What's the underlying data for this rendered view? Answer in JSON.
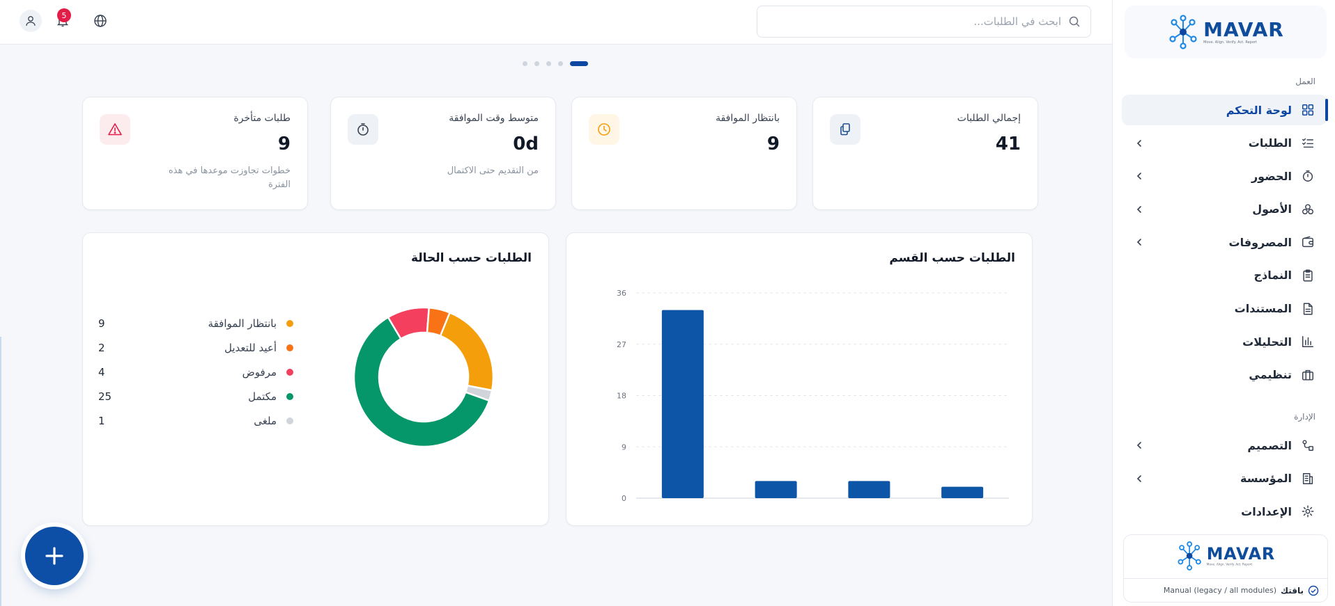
{
  "brand": {
    "name": "MAVAR",
    "tagline": "Move. Align. Verify. Act. Report"
  },
  "search": {
    "placeholder": "ابحث في الطلبات..."
  },
  "topbar": {
    "notification_count": "5"
  },
  "pager": {
    "active_index": 0,
    "count": 5
  },
  "sidebar": {
    "work_label": "العمل",
    "admin_label": "الإدارة",
    "work_items": [
      {
        "label": "لوحة التحكم",
        "icon": "grid-icon",
        "active": true,
        "has_chevron": false
      },
      {
        "label": "الطلبات",
        "icon": "checklist-icon",
        "active": false,
        "has_chevron": true
      },
      {
        "label": "الحضور",
        "icon": "stopwatch-icon",
        "active": false,
        "has_chevron": true
      },
      {
        "label": "الأصول",
        "icon": "boxes-icon",
        "active": false,
        "has_chevron": true
      },
      {
        "label": "المصروفات",
        "icon": "wallet-icon",
        "active": false,
        "has_chevron": true
      },
      {
        "label": "النماذج",
        "icon": "clipboard-icon",
        "active": false,
        "has_chevron": false
      },
      {
        "label": "المستندات",
        "icon": "document-icon",
        "active": false,
        "has_chevron": false
      },
      {
        "label": "التحليلات",
        "icon": "bar-chart-icon",
        "active": false,
        "has_chevron": false
      },
      {
        "label": "تنظيمي",
        "icon": "briefcase-icon",
        "active": false,
        "has_chevron": false
      }
    ],
    "admin_items": [
      {
        "label": "التصميم",
        "icon": "workflow-icon",
        "active": false,
        "has_chevron": true
      },
      {
        "label": "المؤسسة",
        "icon": "building-icon",
        "active": false,
        "has_chevron": true
      },
      {
        "label": "الإعدادات",
        "icon": "gear-icon",
        "active": false,
        "has_chevron": false
      }
    ],
    "plan": {
      "label": "باقتك",
      "value": "Manual (legacy / all modules)"
    }
  },
  "stats": [
    {
      "title": "إجمالي الطلبات",
      "value": "41",
      "sub": "",
      "icon": "copy-icon",
      "icon_bg": "#eef2f7",
      "icon_color": "#1e4f91"
    },
    {
      "title": "بانتظار الموافقة",
      "value": "9",
      "sub": "",
      "icon": "clock-icon",
      "icon_bg": "#fff6e5",
      "icon_color": "#f59e0b"
    },
    {
      "title": "متوسط وقت الموافقة",
      "value": "0d",
      "sub": "من التقديم حتى الاكتمال",
      "icon": "stopwatch-icon",
      "icon_bg": "#eef1f5",
      "icon_color": "#374151"
    },
    {
      "title": "طلبات متأخرة",
      "value": "9",
      "sub": "خطوات تجاوزت موعدها في هذه الفترة",
      "icon": "warning-icon",
      "icon_bg": "#fdecee",
      "icon_color": "#e11d48"
    }
  ],
  "charts": {
    "department_title": "الطلبات حسب القسم",
    "status_title": "الطلبات حسب الحالة"
  },
  "chart_data": [
    {
      "type": "bar",
      "title": "الطلبات حسب القسم",
      "categories": [
        "",
        "",
        "",
        ""
      ],
      "values": [
        33,
        3,
        3,
        2
      ],
      "ylim": [
        0,
        36
      ],
      "yticks": [
        0,
        9,
        18,
        27,
        36
      ],
      "grid": true,
      "color": "#0d55a6"
    },
    {
      "type": "pie",
      "title": "الطلبات حسب الحالة",
      "donut": true,
      "slices": [
        {
          "name": "بانتظار الموافقة",
          "value": 9,
          "color": "#f59e0b"
        },
        {
          "name": "ملغى",
          "value": 1,
          "color": "#d1d5db"
        },
        {
          "name": "مكتمل",
          "value": 25,
          "color": "#059669"
        },
        {
          "name": "مرفوض",
          "value": 4,
          "color": "#f43f5e"
        },
        {
          "name": "أعيد للتعديل",
          "value": 2,
          "color": "#f97316"
        }
      ],
      "legend_order": [
        "بانتظار الموافقة",
        "أعيد للتعديل",
        "مرفوض",
        "مكتمل",
        "ملغى"
      ],
      "legend": "left"
    }
  ]
}
